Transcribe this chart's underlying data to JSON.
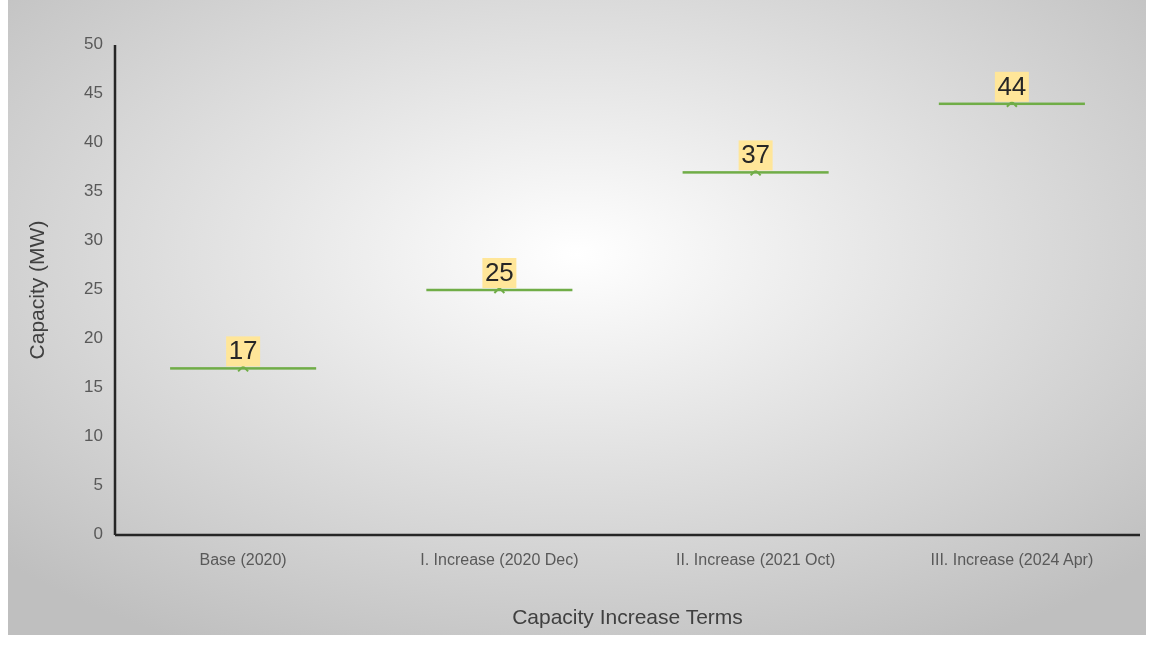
{
  "chart_data": {
    "type": "scatter",
    "xlabel": "Capacity Increase Terms",
    "ylabel": "Capacity (MW)",
    "categories": [
      "Base (2020)",
      "I. Increase (2020 Dec)",
      "II. Increase (2021 Oct)",
      "III. Increase (2024 Apr)"
    ],
    "values": [
      17,
      25,
      37,
      44
    ],
    "color": "#70ad47",
    "ylim": [
      0,
      50
    ],
    "yticks": [
      0,
      5,
      10,
      15,
      20,
      25,
      30,
      35,
      40,
      45,
      50
    ],
    "data_labels": true
  }
}
